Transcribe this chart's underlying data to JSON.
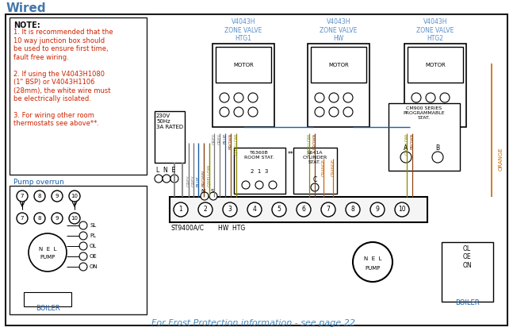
{
  "title": "Wired",
  "bg_color": "#ffffff",
  "border_color": "#1a1a1a",
  "note_bold": "NOTE:",
  "note_lines": [
    "1. It is recommended that the",
    "10 way junction box should",
    "be used to ensure first time,",
    "fault free wiring.",
    "",
    "2. If using the V4043H1080",
    "(1\" BSP) or V4043H1106",
    "(28mm), the white wire must",
    "be electrically isolated.",
    "",
    "3. For wiring other room",
    "thermostats see above**."
  ],
  "pump_overrun_label": "Pump overrun",
  "frost_text": "For Frost Protection information - see page 22",
  "zone_valve_color": "#5b8fc9",
  "orange_color": "#cc6600",
  "grey_color": "#777777",
  "brown_color": "#8B4513",
  "blue_color": "#1a5fa8",
  "gyellow_color": "#888800",
  "red_color": "#cc2200",
  "text_color": "#111111",
  "frost_color": "#4488bb",
  "title_color": "#4477aa"
}
